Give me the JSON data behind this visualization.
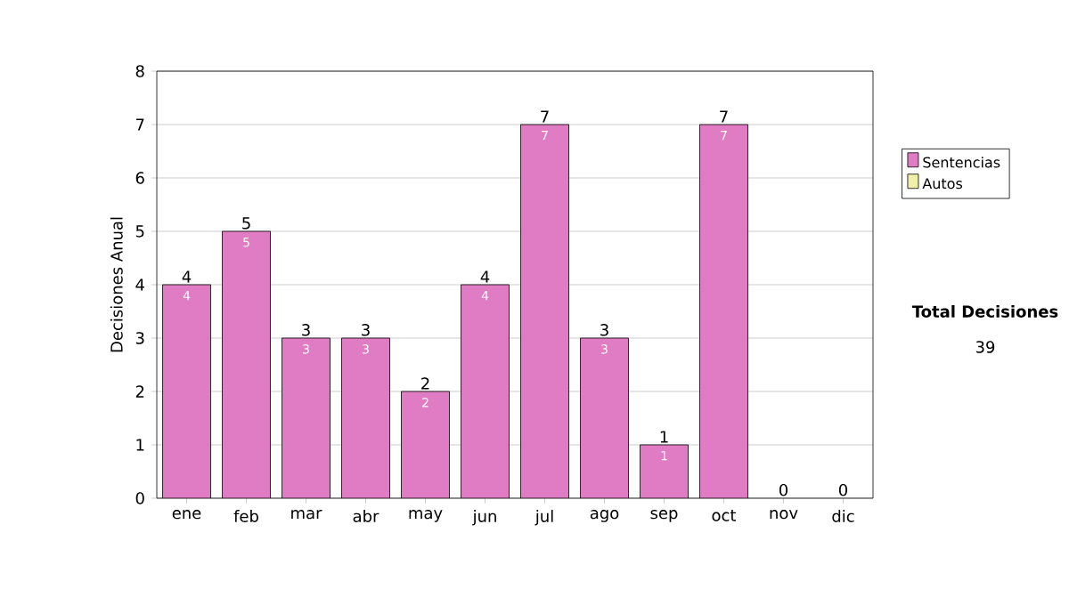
{
  "chart_data": {
    "type": "bar",
    "stacked": true,
    "ylabel": "Decisiones Anual",
    "categories": [
      "ene",
      "feb",
      "mar",
      "abr",
      "may",
      "jun",
      "jul",
      "ago",
      "sep",
      "oct",
      "nov",
      "dic"
    ],
    "series": [
      {
        "name": "Sentencias",
        "color": "#e07cc4",
        "values": [
          4,
          5,
          3,
          3,
          2,
          4,
          7,
          3,
          1,
          7,
          0,
          0
        ],
        "value_labels": [
          "4",
          "5",
          "3",
          "3",
          "2",
          "4",
          "7",
          "3",
          "1",
          "7",
          null,
          null
        ]
      },
      {
        "name": "Autos",
        "color": "#f0f0a8",
        "values": [
          0,
          0,
          0,
          0,
          0,
          0,
          0,
          0,
          0,
          0,
          0,
          0
        ]
      }
    ],
    "totals": [
      "4",
      "5",
      "3",
      "3",
      "2",
      "4",
      "7",
      "3",
      "1",
      "7",
      "0",
      "0"
    ],
    "ylim": [
      0,
      8
    ],
    "yticks": [
      0,
      1,
      2,
      3,
      4,
      5,
      6,
      7,
      8
    ],
    "grid": "y",
    "legend": "right",
    "annotations": [
      "Total Decisiones",
      "39"
    ]
  }
}
